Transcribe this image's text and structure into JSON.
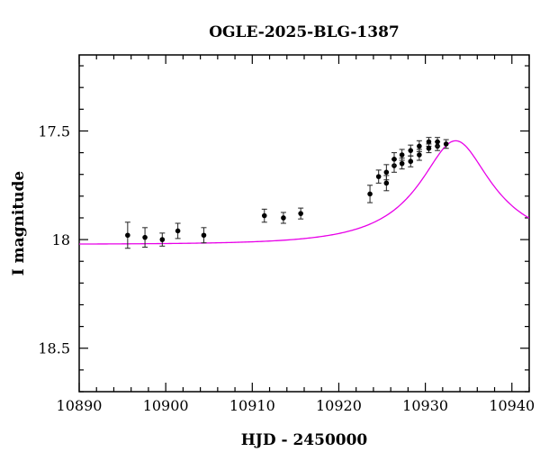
{
  "chart_data": {
    "type": "scatter",
    "title": "OGLE-2025-BLG-1387",
    "xlabel": "HJD - 2450000",
    "ylabel": "I magnitude",
    "xlim": [
      10890,
      10942
    ],
    "ylim": [
      18.7,
      17.15
    ],
    "y_inverted": true,
    "x_ticks": [
      10890,
      10900,
      10910,
      10920,
      10930,
      10940
    ],
    "y_ticks": [
      17.5,
      18,
      18.5
    ],
    "y_tick_labels": [
      "17.5",
      "18",
      "18.5"
    ],
    "grid": false,
    "series": [
      {
        "name": "observations",
        "type": "scatter_with_errors",
        "points": [
          {
            "x": 10895.6,
            "y": 17.98,
            "err": 0.06
          },
          {
            "x": 10897.6,
            "y": 17.99,
            "err": 0.045
          },
          {
            "x": 10899.6,
            "y": 18.0,
            "err": 0.03
          },
          {
            "x": 10901.4,
            "y": 17.96,
            "err": 0.035
          },
          {
            "x": 10904.4,
            "y": 17.98,
            "err": 0.035
          },
          {
            "x": 10911.4,
            "y": 17.89,
            "err": 0.03
          },
          {
            "x": 10913.6,
            "y": 17.9,
            "err": 0.025
          },
          {
            "x": 10915.6,
            "y": 17.88,
            "err": 0.025
          },
          {
            "x": 10923.6,
            "y": 17.79,
            "err": 0.04
          },
          {
            "x": 10924.6,
            "y": 17.71,
            "err": 0.03
          },
          {
            "x": 10925.5,
            "y": 17.69,
            "err": 0.035
          },
          {
            "x": 10925.5,
            "y": 17.74,
            "err": 0.035
          },
          {
            "x": 10926.4,
            "y": 17.66,
            "err": 0.03
          },
          {
            "x": 10926.4,
            "y": 17.63,
            "err": 0.03
          },
          {
            "x": 10927.3,
            "y": 17.65,
            "err": 0.025
          },
          {
            "x": 10927.3,
            "y": 17.61,
            "err": 0.025
          },
          {
            "x": 10928.3,
            "y": 17.64,
            "err": 0.025
          },
          {
            "x": 10928.3,
            "y": 17.59,
            "err": 0.025
          },
          {
            "x": 10929.3,
            "y": 17.61,
            "err": 0.025
          },
          {
            "x": 10929.3,
            "y": 17.57,
            "err": 0.025
          },
          {
            "x": 10930.4,
            "y": 17.55,
            "err": 0.02
          },
          {
            "x": 10930.4,
            "y": 17.58,
            "err": 0.02
          },
          {
            "x": 10931.4,
            "y": 17.57,
            "err": 0.02
          },
          {
            "x": 10931.4,
            "y": 17.55,
            "err": 0.02
          },
          {
            "x": 10932.4,
            "y": 17.56,
            "err": 0.02
          }
        ]
      },
      {
        "name": "model",
        "type": "line",
        "color": "#e800e8",
        "model": {
          "t0": 10933.5,
          "tE": 10.45,
          "u0": 0.4,
          "baseline": 18.022,
          "peak": 17.545
        }
      }
    ],
    "colors": {
      "points": "#000000",
      "model": "#e800e8",
      "axes": "#000000"
    }
  }
}
